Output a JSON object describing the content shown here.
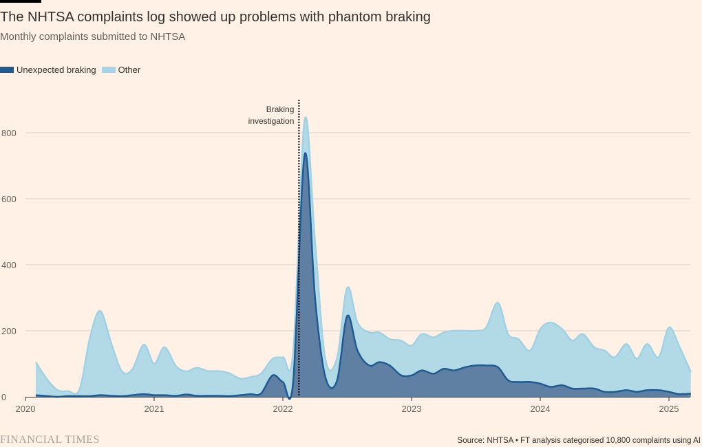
{
  "header": {
    "title": "The NHTSA complaints log showed up problems with phantom braking",
    "subtitle": "Monthly complaints submitted to NHTSA"
  },
  "legend": {
    "items": [
      {
        "label": "Unexpected braking",
        "color": "#1f5b93"
      },
      {
        "label": "Other",
        "color": "#a4d4e8"
      }
    ]
  },
  "annotation": {
    "line1": "Braking",
    "line2": "investigation",
    "x": 2022.125
  },
  "footer": {
    "source": "Source: NHTSA • FT analysis categorised 10,800 complaints using AI",
    "brand": "FINANCIAL TIMES"
  },
  "colors": {
    "background": "#fff1e5",
    "braking_fill": "#5f7fa3",
    "braking_line": "#1f5b93",
    "total_fill": "#b2dae6",
    "total_line": "#9fd2e6",
    "grid": "#d8d0c8"
  },
  "chart_data": {
    "type": "area",
    "stacked": true,
    "xlim": [
      2020,
      2025.17
    ],
    "ylim": [
      0,
      900
    ],
    "yticks": [
      0,
      200,
      400,
      600,
      800
    ],
    "xticks": [
      2020,
      2021,
      2022,
      2023,
      2024,
      2025
    ],
    "grid": true,
    "legend_position": "top-left",
    "x": [
      2020.08,
      2020.17,
      2020.25,
      2020.33,
      2020.42,
      2020.5,
      2020.58,
      2020.67,
      2020.75,
      2020.83,
      2020.92,
      2021.0,
      2021.08,
      2021.17,
      2021.25,
      2021.33,
      2021.42,
      2021.5,
      2021.58,
      2021.67,
      2021.75,
      2021.83,
      2021.92,
      2022.0,
      2022.08,
      2022.17,
      2022.25,
      2022.33,
      2022.42,
      2022.5,
      2022.58,
      2022.67,
      2022.75,
      2022.83,
      2022.92,
      2023.0,
      2023.08,
      2023.17,
      2023.25,
      2023.33,
      2023.42,
      2023.5,
      2023.58,
      2023.67,
      2023.75,
      2023.83,
      2023.92,
      2024.0,
      2024.08,
      2024.17,
      2024.25,
      2024.33,
      2024.42,
      2024.5,
      2024.58,
      2024.67,
      2024.75,
      2024.83,
      2024.92,
      2025.0,
      2025.08,
      2025.17
    ],
    "series": [
      {
        "name": "Unexpected braking",
        "values": [
          5,
          2,
          0,
          2,
          2,
          2,
          5,
          3,
          2,
          5,
          8,
          5,
          5,
          3,
          7,
          3,
          3,
          3,
          2,
          5,
          8,
          10,
          65,
          45,
          45,
          735,
          300,
          60,
          48,
          245,
          140,
          95,
          105,
          95,
          65,
          65,
          80,
          70,
          85,
          80,
          90,
          95,
          95,
          90,
          50,
          45,
          45,
          40,
          30,
          35,
          25,
          25,
          25,
          15,
          15,
          20,
          15,
          20,
          20,
          15,
          8,
          10
        ]
      },
      {
        "name": "Other",
        "values": [
          100,
          50,
          20,
          15,
          20,
          175,
          255,
          155,
          75,
          78,
          150,
          95,
          145,
          90,
          70,
          85,
          75,
          75,
          70,
          50,
          52,
          60,
          50,
          75,
          90,
          105,
          170,
          55,
          68,
          85,
          85,
          100,
          90,
          80,
          105,
          90,
          110,
          110,
          110,
          120,
          110,
          105,
          115,
          195,
          140,
          130,
          95,
          165,
          195,
          170,
          145,
          165,
          125,
          125,
          105,
          140,
          100,
          140,
          100,
          195,
          145,
          65
        ]
      }
    ]
  }
}
